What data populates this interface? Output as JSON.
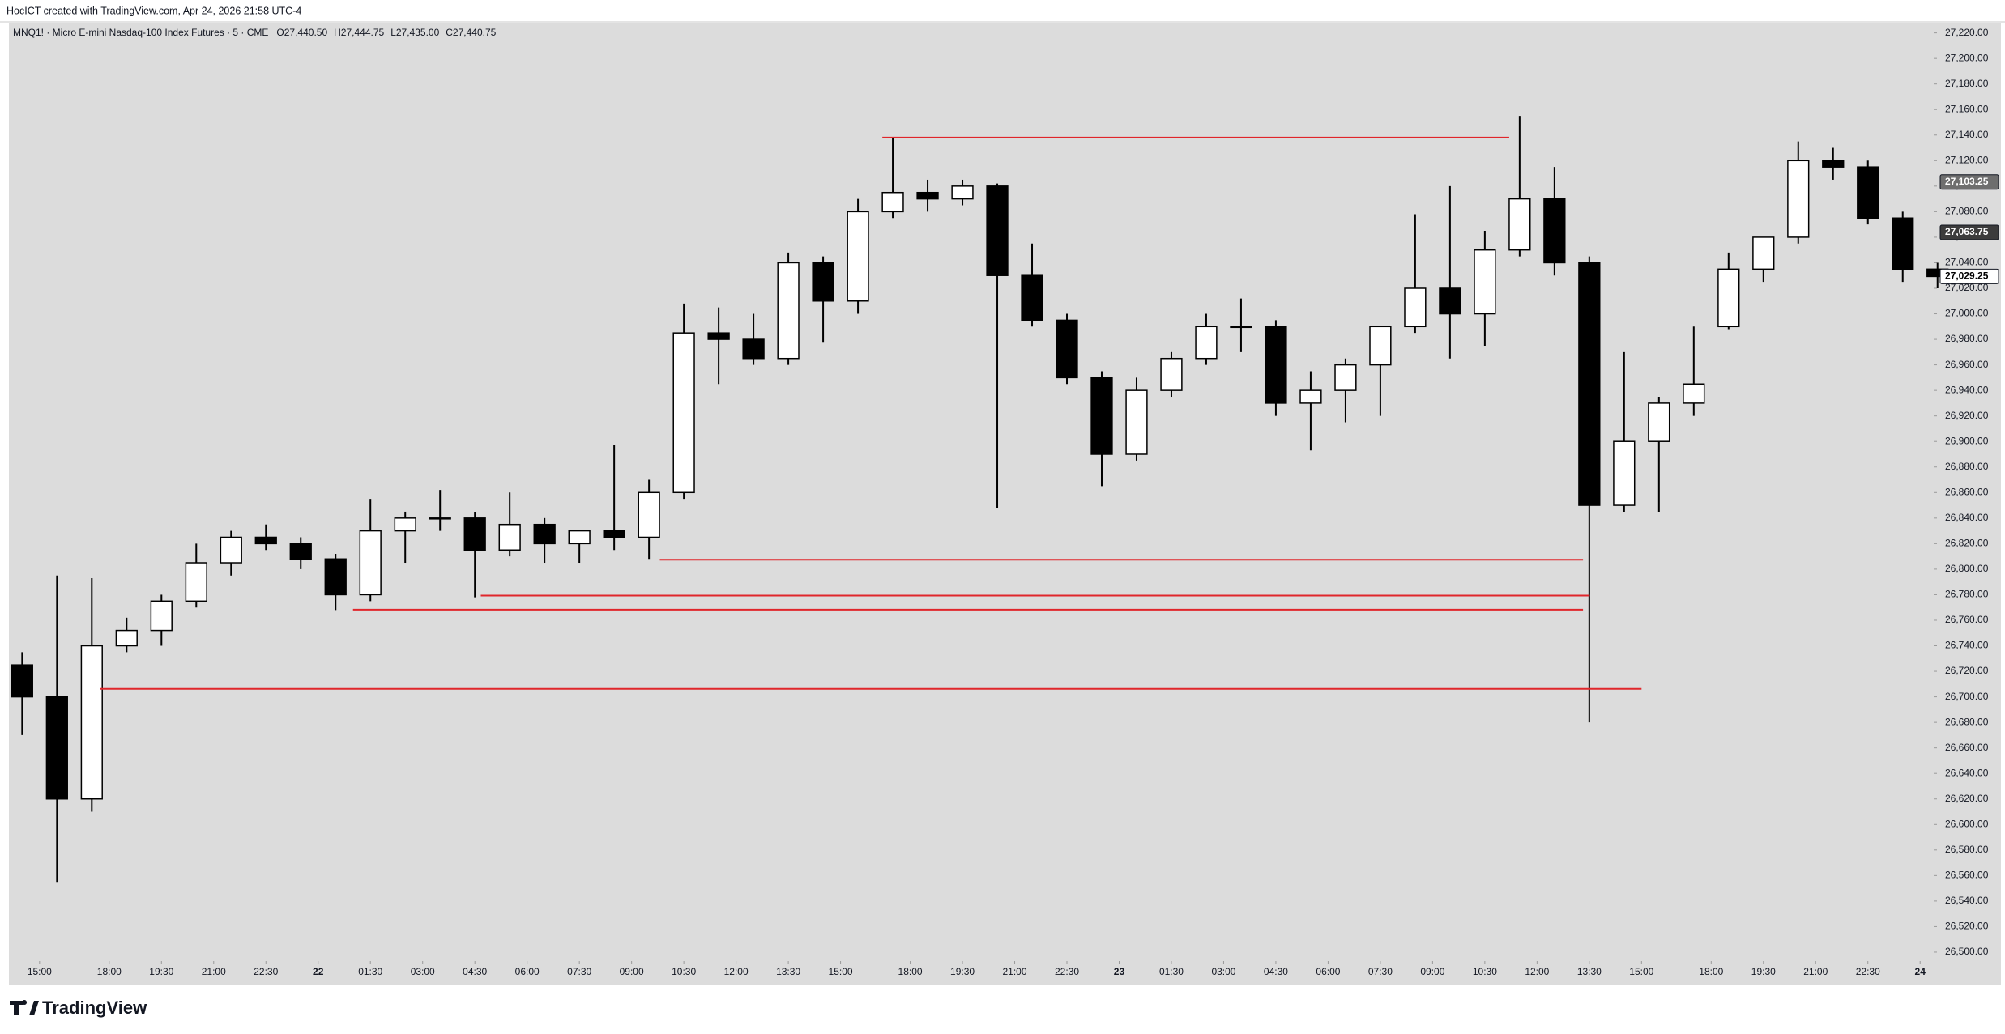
{
  "chart_data": {
    "type": "candlestick",
    "credit": "HocICT created with TradingView.com, Apr 24, 2026 21:58 UTC-4",
    "title": "MNQ1! · Micro E-mini Nasdaq-100 Index Futures · 5 · CME",
    "ohlc_labels": [
      "O27,440.50",
      "H27,444.75",
      "L27,435.00",
      "C27,440.75"
    ],
    "brand": "TradingView",
    "up_color": "#ffffff",
    "down_color": "#000000",
    "wick_color": "#000000",
    "background": "#dcdcdc",
    "level_color": "#e0262b",
    "xlim": [
      -0.88,
      54.39
    ],
    "ylim": [
      26493,
      27228
    ],
    "x": [
      -1,
      0,
      1,
      2,
      3,
      4,
      5,
      6,
      7,
      8,
      9,
      10,
      11,
      12,
      13,
      14,
      15,
      16,
      17,
      18,
      19,
      20,
      21,
      22,
      23,
      24,
      25,
      26,
      27,
      28,
      29,
      30,
      31,
      32,
      33,
      34,
      35,
      36,
      37,
      38,
      39,
      40,
      41,
      42,
      43,
      44,
      45,
      46,
      47,
      48,
      49,
      50,
      51,
      52,
      53,
      54
    ],
    "open": [
      26725,
      26700,
      26620,
      26740,
      26752,
      26775,
      26805,
      26825,
      26820,
      26808,
      26780,
      26830,
      26840,
      26840,
      26815,
      26835,
      26820,
      26830,
      26825,
      26860,
      26985,
      26980,
      26965,
      27040,
      27010,
      27080,
      27095,
      27090,
      27100,
      27030,
      26995,
      26950,
      26890,
      26940,
      26965,
      26990,
      26990,
      26930,
      26940,
      26960,
      26990,
      27020,
      27000,
      27050,
      27090,
      27040,
      26850,
      26900,
      26930,
      26990,
      27035,
      27060,
      27120,
      27115,
      27075,
      27035
    ],
    "high": [
      26735,
      26795,
      26793,
      26762,
      26780,
      26820,
      26830,
      26835,
      26825,
      26812,
      26855,
      26845,
      26862,
      26845,
      26860,
      26840,
      26830,
      26897,
      26870,
      27008,
      27005,
      27000,
      27048,
      27045,
      27090,
      27138,
      27105,
      27105,
      27102,
      27055,
      27000,
      26955,
      26950,
      26970,
      27000,
      27012,
      26995,
      26955,
      26965,
      26985,
      27078,
      27100,
      27065,
      27155,
      27115,
      27045,
      26970,
      26935,
      26990,
      27048,
      27060,
      27135,
      27130,
      27120,
      27080,
      27040
    ],
    "low": [
      26670,
      26555,
      26610,
      26735,
      26740,
      26770,
      26795,
      26815,
      26800,
      26768,
      26775,
      26805,
      26830,
      26778,
      26810,
      26805,
      26805,
      26815,
      26808,
      26855,
      26945,
      26960,
      26960,
      26978,
      27000,
      27075,
      27080,
      27085,
      26848,
      26990,
      26945,
      26865,
      26885,
      26935,
      26960,
      26970,
      26920,
      26893,
      26915,
      26920,
      26985,
      26965,
      26975,
      27045,
      27030,
      26680,
      26845,
      26845,
      26920,
      26988,
      27025,
      27055,
      27105,
      27070,
      27025,
      27020
    ],
    "close": [
      26700,
      26620,
      26740,
      26752,
      26775,
      26805,
      26825,
      26820,
      26808,
      26780,
      26830,
      26840,
      26840,
      26815,
      26835,
      26820,
      26830,
      26825,
      26860,
      26985,
      26980,
      26965,
      27040,
      27010,
      27080,
      27095,
      27090,
      27100,
      27030,
      26995,
      26950,
      26890,
      26940,
      26965,
      26990,
      26990,
      26930,
      26940,
      26960,
      26990,
      27020,
      27000,
      27050,
      27090,
      27040,
      26850,
      26900,
      26930,
      26945,
      27035,
      27060,
      27120,
      27115,
      27075,
      27035,
      27029.25
    ],
    "levels": [
      {
        "y": 27138,
        "x": [
          24.2,
          42.2
        ]
      },
      {
        "y": 26807.4,
        "x": [
          17.81,
          44.32
        ]
      },
      {
        "y": 26779.3,
        "x": [
          12.67,
          44.51
        ]
      },
      {
        "y": 26768.3,
        "x": [
          9.0,
          44.32
        ]
      },
      {
        "y": 26706.2,
        "x": [
          1.73,
          46.0
        ]
      }
    ],
    "price_labels": [
      {
        "value": 27103.25,
        "label": "27,103.25",
        "color": "#6e6e6e",
        "text_color": "#ffffff"
      },
      {
        "value": 27063.75,
        "label": "27,063.75",
        "color": "#3c3c3c",
        "text_color": "#ffffff"
      },
      {
        "value": 27029.25,
        "label": "27,029.25",
        "color": "#ffffff",
        "text_color": "#000000"
      }
    ],
    "xticks": [
      {
        "value": 0,
        "label": "15:00"
      },
      {
        "value": 2,
        "label": "18:00"
      },
      {
        "value": 3.5,
        "label": "19:30"
      },
      {
        "value": 5,
        "label": "21:00"
      },
      {
        "value": 6.5,
        "label": "22:30"
      },
      {
        "value": 8,
        "label": "22"
      },
      {
        "value": 9.5,
        "label": "01:30"
      },
      {
        "value": 11,
        "label": "03:00"
      },
      {
        "value": 12.5,
        "label": "04:30"
      },
      {
        "value": 14,
        "label": "06:00"
      },
      {
        "value": 15.5,
        "label": "07:30"
      },
      {
        "value": 17,
        "label": "09:00"
      },
      {
        "value": 18.5,
        "label": "10:30"
      },
      {
        "value": 20,
        "label": "12:00"
      },
      {
        "value": 21.5,
        "label": "13:30"
      },
      {
        "value": 23,
        "label": "15:00"
      },
      {
        "value": 25,
        "label": "18:00"
      },
      {
        "value": 26.5,
        "label": "19:30"
      },
      {
        "value": 28,
        "label": "21:00"
      },
      {
        "value": 29.5,
        "label": "22:30"
      },
      {
        "value": 31,
        "label": "23"
      },
      {
        "value": 32.5,
        "label": "01:30"
      },
      {
        "value": 34,
        "label": "03:00"
      },
      {
        "value": 35.5,
        "label": "04:30"
      },
      {
        "value": 37,
        "label": "06:00"
      },
      {
        "value": 38.5,
        "label": "07:30"
      },
      {
        "value": 40,
        "label": "09:00"
      },
      {
        "value": 41.5,
        "label": "10:30"
      },
      {
        "value": 43,
        "label": "12:00"
      },
      {
        "value": 44.5,
        "label": "13:30"
      },
      {
        "value": 46,
        "label": "15:00"
      },
      {
        "value": 48,
        "label": "18:00"
      },
      {
        "value": 49.5,
        "label": "19:30"
      },
      {
        "value": 51,
        "label": "21:00"
      },
      {
        "value": 52.5,
        "label": "22:30"
      },
      {
        "value": 54,
        "label": "24"
      }
    ],
    "yticks": [
      {
        "value": 26500,
        "label": "26,500.00"
      },
      {
        "value": 26520,
        "label": "26,520.00"
      },
      {
        "value": 26540,
        "label": "26,540.00"
      },
      {
        "value": 26560,
        "label": "26,560.00"
      },
      {
        "value": 26580,
        "label": "26,580.00"
      },
      {
        "value": 26600,
        "label": "26,600.00"
      },
      {
        "value": 26620,
        "label": "26,620.00"
      },
      {
        "value": 26640,
        "label": "26,640.00"
      },
      {
        "value": 26660,
        "label": "26,660.00"
      },
      {
        "value": 26680,
        "label": "26,680.00"
      },
      {
        "value": 26700,
        "label": "26,700.00"
      },
      {
        "value": 26720,
        "label": "26,720.00"
      },
      {
        "value": 26740,
        "label": "26,740.00"
      },
      {
        "value": 26760,
        "label": "26,760.00"
      },
      {
        "value": 26780,
        "label": "26,780.00"
      },
      {
        "value": 26800,
        "label": "26,800.00"
      },
      {
        "value": 26820,
        "label": "26,820.00"
      },
      {
        "value": 26840,
        "label": "26,840.00"
      },
      {
        "value": 26860,
        "label": "26,860.00"
      },
      {
        "value": 26880,
        "label": "26,880.00"
      },
      {
        "value": 26900,
        "label": "26,900.00"
      },
      {
        "value": 26920,
        "label": "26,920.00"
      },
      {
        "value": 26940,
        "label": "26,940.00"
      },
      {
        "value": 26960,
        "label": "26,960.00"
      },
      {
        "value": 26980,
        "label": "26,980.00"
      },
      {
        "value": 27000,
        "label": "27,000.00"
      },
      {
        "value": 27020,
        "label": "27,020.00"
      },
      {
        "value": 27040,
        "label": "27,040.00"
      },
      {
        "value": 27060,
        "label": "27,060.00"
      },
      {
        "value": 27080,
        "label": "27,080.00"
      },
      {
        "value": 27100,
        "label": "27,100.00"
      },
      {
        "value": 27120,
        "label": "27,120.00"
      },
      {
        "value": 27140,
        "label": "27,140.00"
      },
      {
        "value": 27160,
        "label": "27,160.00"
      },
      {
        "value": 27180,
        "label": "27,180.00"
      },
      {
        "value": 27200,
        "label": "27,200.00"
      },
      {
        "value": 27220,
        "label": "27,220.00"
      }
    ]
  }
}
